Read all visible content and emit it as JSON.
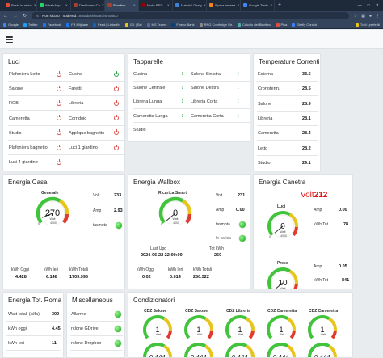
{
  "browser": {
    "tabs": [
      {
        "label": "Posta in arrivo",
        "color": "#e34c3c"
      },
      {
        "label": "WhatsApp",
        "color": "#25d366"
      },
      {
        "label": "Dashboard Ca",
        "color": "#a04030"
      },
      {
        "label": "Sinottico",
        "color": "#a04030",
        "active": true
      },
      {
        "label": "Node-RED",
        "color": "#8f0000"
      },
      {
        "label": "Material Desig",
        "color": "#3f7fd6"
      },
      {
        "label": "Space betwee",
        "color": "#f48024"
      },
      {
        "label": "Google Tradu",
        "color": "#4285f4"
      }
    ],
    "security": "Non sicuro",
    "url_host": "nodered",
    "url_path": ":1880/dashboard/sinottico",
    "bookmarks": [
      "Google",
      "Twitter",
      "Facebook",
      "FB Milplace",
      "Feed | LinkedIn",
      "GS | Sal",
      "MS Teams",
      "Fineco Bank",
      "RNG Coinfridge Str.",
      "Calcolo del Bioritmo",
      "Pika",
      "Shelly Control"
    ],
    "bookmarks_right": "Tutti i preferiti"
  },
  "luci": {
    "title": "Luci",
    "left": [
      {
        "label": "Plafoniera Letto",
        "state": "off"
      },
      {
        "label": "Salone",
        "state": "off"
      },
      {
        "label": "RGB",
        "state": "off"
      },
      {
        "label": "Cameretta",
        "state": "off"
      },
      {
        "label": "Studio",
        "state": "off"
      },
      {
        "label": "Plafoniera bagnetto",
        "state": "off"
      },
      {
        "label": "Luci 4 giardino",
        "state": "off"
      }
    ],
    "right": [
      {
        "label": "Cucina",
        "state": "on"
      },
      {
        "label": "Faretti",
        "state": "off"
      },
      {
        "label": "Libreria",
        "state": "off"
      },
      {
        "label": "Corridoio",
        "state": "off"
      },
      {
        "label": "Applique bagnetto",
        "state": "off"
      },
      {
        "label": "Luci 1 giardino",
        "state": "off"
      }
    ]
  },
  "tapparelle": {
    "title": "Tapparelle",
    "left": [
      "Cucina",
      "Salone Centrale",
      "Libreria Lunga",
      "Cameretta Lunga",
      "Studio"
    ],
    "right": [
      "Salone Sinistra",
      "Salone Destra",
      "Libreria Corta",
      "Cameretta Corta"
    ]
  },
  "temperature": {
    "title": "Temperature Correnti",
    "rows": [
      {
        "label": "Esterna",
        "value": "33.5"
      },
      {
        "label": "Cronoterm.",
        "value": "28.5"
      },
      {
        "label": "Salone",
        "value": "28.9"
      },
      {
        "label": "Libreria",
        "value": "28.1"
      },
      {
        "label": "Cameretta",
        "value": "28.4"
      },
      {
        "label": "Letto",
        "value": "28.2"
      },
      {
        "label": "Studio",
        "value": "29.1"
      }
    ]
  },
  "energia_casa": {
    "title": "Energia Casa",
    "gauge_label": "Generale",
    "gauge_value": "270",
    "gauge_unit": "Watt",
    "gauge_min": "0",
    "gauge_max": "4000",
    "gauge_fraction": 0.0675,
    "volt_label": "Volt",
    "volt": "233",
    "amp_label": "Amp",
    "amp": "2.93",
    "tasmota_label": "tasmota",
    "kwh_oggi_label": "kWh Oggi",
    "kwh_oggi": "4.428",
    "kwh_ieri_label": "kWh Ieri",
    "kwh_ieri": "6.148",
    "kwh_tot_label": "kWh Totali",
    "kwh_tot": "1709.995"
  },
  "energia_wallbox": {
    "title": "Energia Wallbox",
    "gauge_label": "Ricarica Smart",
    "gauge_value": "0",
    "gauge_unit": "Watt",
    "gauge_min": "0",
    "gauge_max": "4000",
    "gauge_fraction": 0,
    "volt_label": "Volt",
    "volt": "231",
    "amp_label": "Amp",
    "amp": "0.00",
    "tasmota_label": "tasmota",
    "carica_label": "In carica",
    "last_upd_label": "Last Upd",
    "last_upd": "2024-06-22 22:00:00",
    "tot_kwh_label": "Tot kWh",
    "tot_kwh": "250",
    "kwh_oggi_label": "kWh Oggi",
    "kwh_oggi": "0.02",
    "kwh_ieri_label": "kWh Ieri",
    "kwh_ieri": "0.014",
    "kwh_tot_label": "kWh Totali",
    "kwh_tot": "250.322"
  },
  "energia_canetra": {
    "title": "Energia Canetra",
    "volt_label": "Volt",
    "volt": "212",
    "luci": {
      "label": "Luci",
      "value": "0",
      "unit": "Watt",
      "min": "0",
      "max": "4000",
      "fraction": 0,
      "amp_label": "Amp",
      "amp": "0.00",
      "kwh_label": "kWh Tot",
      "kwh": "78"
    },
    "prese": {
      "label": "Prese",
      "value": "10",
      "unit": "Watt",
      "min": "0",
      "max": "4000",
      "fraction": 0.0025,
      "amp_label": "Amp",
      "amp": "0.05",
      "kwh_label": "kWh Tot",
      "kwh": "841"
    }
  },
  "energia_roma": {
    "title": "Energia Tot. Roma",
    "rows": [
      {
        "label": "Watt totali (Alfa)",
        "value": "300"
      },
      {
        "label": "kWh oggi",
        "value": "4.45"
      },
      {
        "label": "kWh Ieri",
        "value": "11"
      }
    ]
  },
  "miscellaneous": {
    "title": "Miscellaneous",
    "rows": [
      "Allarme",
      "rclone GDrive",
      "rclone Dropbox"
    ]
  },
  "condizionatori": {
    "title": "Condizionatori",
    "top": [
      {
        "label": "CDZ Salone",
        "value": "1",
        "unit": "Watt"
      },
      {
        "label": "CDZ Salone",
        "value": "1",
        "unit": "Watt"
      },
      {
        "label": "CDZ Libreria",
        "value": "1",
        "unit": "Watt"
      },
      {
        "label": "CDZ Cameretta",
        "value": "1",
        "unit": "Watt"
      },
      {
        "label": "CDZ Cameretta",
        "value": "1",
        "unit": "Watt"
      }
    ],
    "bottom": [
      {
        "value": "0.444"
      },
      {
        "value": "0.444"
      },
      {
        "value": "0.444"
      },
      {
        "value": "0.444"
      },
      {
        "value": "0.444"
      }
    ]
  },
  "colors": {
    "on": "#2ea44f",
    "off": "#d9534f",
    "gauge_green": "#41c33b",
    "gauge_yellow": "#e8c51c",
    "gauge_red": "#e03b2e",
    "volt_red": "#e01010"
  }
}
